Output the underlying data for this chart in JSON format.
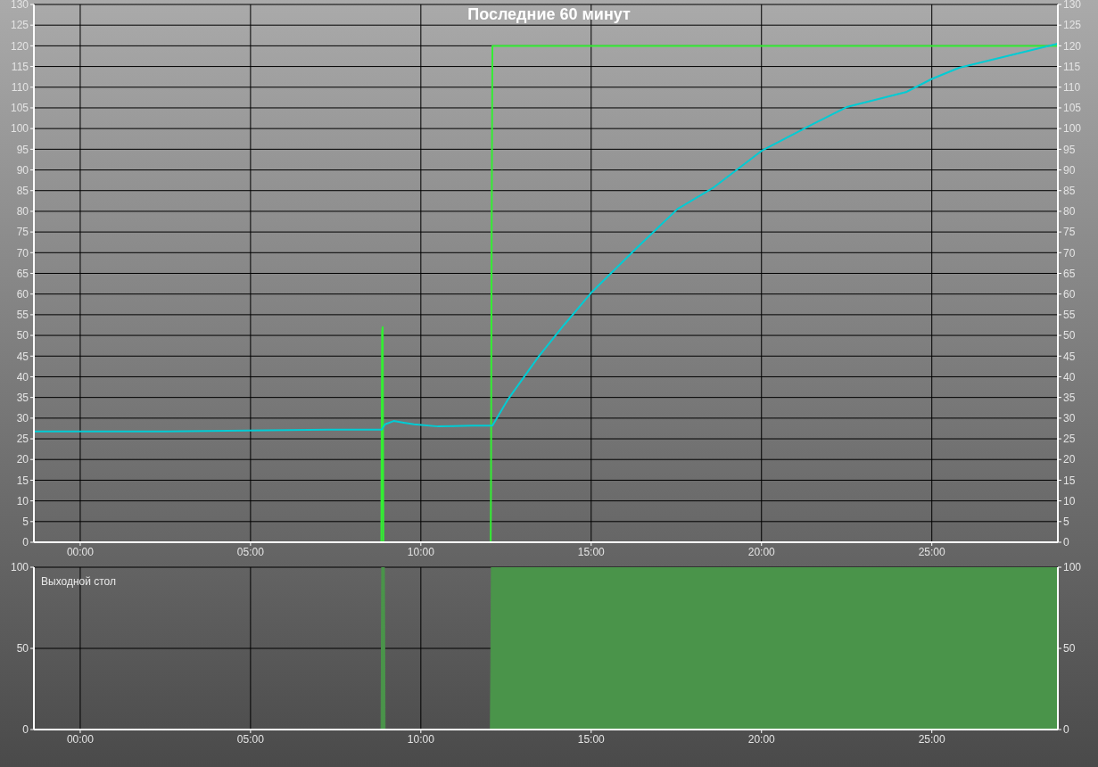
{
  "chart_data": [
    {
      "type": "line",
      "title": "Последние 60 минут",
      "xlim": [
        -1.36,
        28.7
      ],
      "xticks": [
        {
          "value": 0,
          "label": "00:00"
        },
        {
          "value": 5,
          "label": "05:00"
        },
        {
          "value": 10,
          "label": "10:00"
        },
        {
          "value": 15,
          "label": "15:00"
        },
        {
          "value": 20,
          "label": "20:00"
        },
        {
          "value": 25,
          "label": "25:00"
        }
      ],
      "ylim": [
        0,
        130
      ],
      "yticks": [
        0,
        5,
        10,
        15,
        20,
        25,
        30,
        35,
        40,
        45,
        50,
        55,
        60,
        65,
        70,
        75,
        80,
        85,
        90,
        95,
        100,
        105,
        110,
        115,
        120,
        125,
        130
      ],
      "y2lim": [
        0,
        130
      ],
      "y2ticks": [
        0,
        5,
        10,
        15,
        20,
        25,
        30,
        35,
        40,
        45,
        50,
        55,
        60,
        65,
        70,
        75,
        80,
        85,
        90,
        95,
        100,
        105,
        110,
        115,
        120,
        125,
        130
      ],
      "grid": true,
      "marker": "none",
      "line_style": "solid",
      "series": [
        {
          "color": "#33ee33",
          "x": [
            -1.36,
            8.84,
            8.86,
            8.88,
            8.9,
            12.05,
            12.06,
            12.08,
            12.1,
            28.7
          ],
          "values": [
            0,
            0,
            51,
            52,
            0,
            0,
            15,
            78,
            120,
            120
          ]
        },
        {
          "color": "#00ccd4",
          "x": [
            -1.36,
            2.5,
            7.3,
            8.85,
            8.95,
            9.2,
            9.5,
            9.8,
            10.5,
            11.5,
            12.1,
            12.57,
            13.45,
            14.2,
            15.0,
            16.23,
            17.54,
            18.6,
            20.0,
            21.47,
            22.5,
            24.24,
            25.0,
            25.8,
            28.7
          ],
          "values": [
            26.8,
            26.8,
            27.2,
            27.2,
            28.5,
            29.3,
            28.9,
            28.5,
            28.0,
            28.2,
            28.2,
            34.7,
            44.8,
            52.5,
            60.3,
            70.3,
            80.6,
            85.8,
            94.6,
            100.9,
            105.2,
            108.8,
            112,
            114.7,
            120.5
          ]
        }
      ]
    },
    {
      "type": "area",
      "xlim": [
        -1.36,
        28.7
      ],
      "xticks": [
        {
          "value": 0,
          "label": "00:00"
        },
        {
          "value": 5,
          "label": "05:00"
        },
        {
          "value": 10,
          "label": "10:00"
        },
        {
          "value": 15,
          "label": "15:00"
        },
        {
          "value": 20,
          "label": "20:00"
        },
        {
          "value": 25,
          "label": "25:00"
        }
      ],
      "ylim": [
        0,
        100
      ],
      "yticks": [
        0,
        50,
        100
      ],
      "y2lim": [
        0,
        100
      ],
      "y2ticks": [
        0,
        50,
        100
      ],
      "grid": true,
      "annotations": [
        "Выходной стол"
      ],
      "series": [
        {
          "color": "#4a944a",
          "x": [
            -1.36,
            8.83,
            8.85,
            8.93,
            8.95,
            12.04,
            12.07,
            28.7
          ],
          "values": [
            0,
            0,
            100,
            100,
            0,
            0,
            100,
            100
          ]
        }
      ]
    }
  ]
}
